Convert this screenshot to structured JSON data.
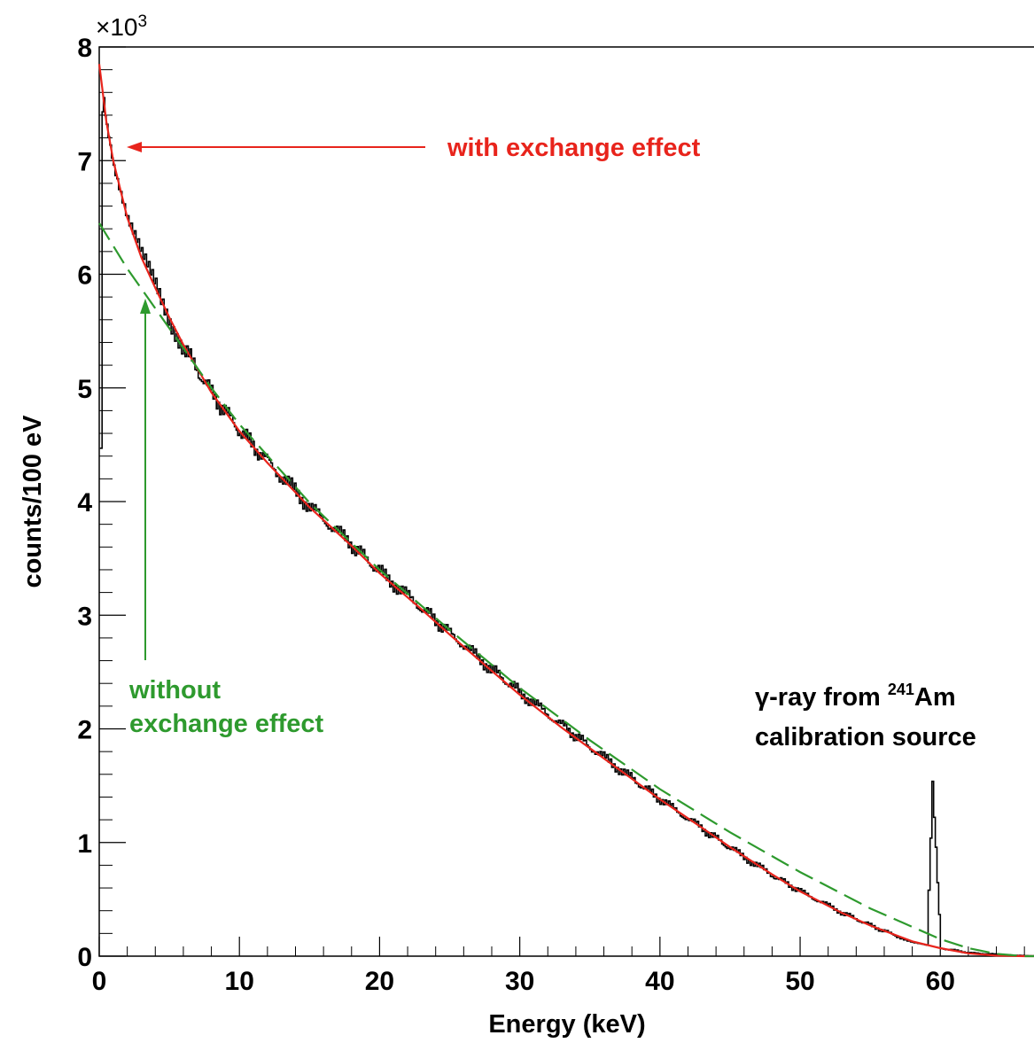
{
  "chart_data": {
    "type": "line",
    "xlabel": "Energy (keV)",
    "ylabel": "counts/100 eV",
    "y_multiplier_label": "×10",
    "y_multiplier_exponent": "3",
    "xlim": [
      0,
      67
    ],
    "ylim": [
      0,
      8000
    ],
    "x_ticks": [
      0,
      10,
      20,
      30,
      40,
      50,
      60
    ],
    "y_ticks": [
      0,
      1000,
      2000,
      3000,
      4000,
      5000,
      6000,
      7000,
      8000
    ],
    "y_tick_labels": [
      "0",
      "1",
      "2",
      "3",
      "4",
      "5",
      "6",
      "7",
      "8"
    ],
    "grid": false,
    "series": [
      {
        "role": "measured spectrum (histogram)",
        "color": "#000000",
        "x": [
          0.05,
          0.2,
          0.5,
          1,
          2,
          3,
          4,
          5,
          6,
          8,
          10,
          12,
          15,
          18,
          20,
          23,
          25,
          28,
          30,
          33,
          35,
          38,
          40,
          43,
          45,
          48,
          50,
          53,
          55,
          57,
          58,
          59,
          59.4,
          60,
          62,
          64,
          65,
          66,
          67
        ],
        "y": [
          4400,
          7500,
          7350,
          7000,
          6500,
          6150,
          5900,
          5600,
          5350,
          4950,
          4620,
          4350,
          3950,
          3620,
          3380,
          3060,
          2840,
          2520,
          2320,
          2030,
          1840,
          1560,
          1380,
          1120,
          950,
          710,
          570,
          380,
          270,
          170,
          120,
          90,
          1500,
          70,
          30,
          15,
          10,
          5,
          0
        ]
      },
      {
        "name": "with exchange effect",
        "color": "#e8241c",
        "x": [
          0,
          0.2,
          0.5,
          1,
          2,
          3,
          4,
          5,
          6,
          8,
          10,
          12,
          15,
          18,
          20,
          23,
          25,
          28,
          30,
          33,
          35,
          38,
          40,
          43,
          45,
          48,
          50,
          53,
          55,
          58,
          60,
          62,
          64,
          65,
          66,
          67
        ],
        "y": [
          7850,
          7650,
          7350,
          7000,
          6500,
          6150,
          5880,
          5620,
          5380,
          4960,
          4620,
          4340,
          3950,
          3610,
          3370,
          3050,
          2830,
          2510,
          2300,
          2010,
          1830,
          1560,
          1380,
          1130,
          960,
          720,
          570,
          380,
          270,
          130,
          70,
          25,
          5,
          2,
          0,
          0
        ]
      },
      {
        "name": "without exchange effect",
        "color": "#2e9a2e",
        "dashed": true,
        "x": [
          0,
          2,
          4,
          6,
          8,
          10,
          15,
          20,
          25,
          30,
          35,
          40,
          45,
          50,
          55,
          60,
          62,
          64,
          66,
          67
        ],
        "y": [
          6450,
          6050,
          5700,
          5350,
          5000,
          4680,
          3990,
          3400,
          2870,
          2360,
          1900,
          1470,
          1090,
          740,
          420,
          150,
          70,
          20,
          0,
          0
        ]
      }
    ],
    "annotations": {
      "with_exchange": "with exchange effect",
      "without_line1": "without",
      "without_line2": "exchange effect",
      "gamma_prefix": "γ-ray from",
      "gamma_isotope_mass": "241",
      "gamma_isotope": "Am",
      "gamma_line2": "calibration source"
    }
  }
}
